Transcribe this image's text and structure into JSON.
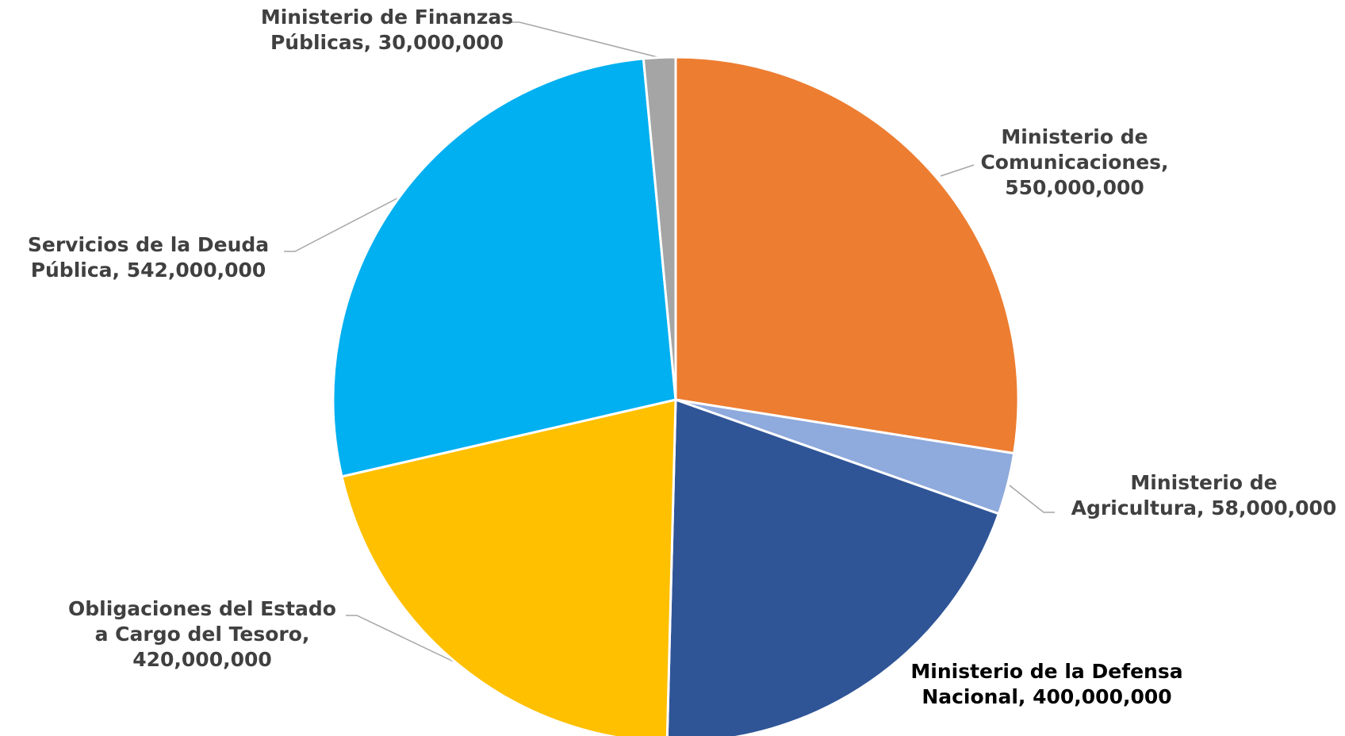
{
  "chart_data": {
    "type": "pie",
    "title": "",
    "start_angle_deg": 0,
    "direction": "clockwise",
    "slices": [
      {
        "label": "Ministerio de Comunicaciones",
        "value": 550000000,
        "value_text": "550,000,000",
        "color": "#ED7D31",
        "label_lines": [
          "Ministerio de",
          "Comunicaciones,",
          "550,000,000"
        ]
      },
      {
        "label": "Ministerio de Agricultura",
        "value": 58000000,
        "value_text": "58,000,000",
        "color": "#8FAADC",
        "label_lines": [
          "Ministerio de",
          "Agricultura, 58,000,000"
        ]
      },
      {
        "label": "Ministerio de la Defensa Nacional",
        "value": 400000000,
        "value_text": "400,000,000",
        "color": "#2F5597",
        "label_lines": [
          "Ministerio de la Defensa",
          "Nacional, 400,000,000"
        ]
      },
      {
        "label": "Obligaciones del Estado a Cargo del Tesoro",
        "value": 420000000,
        "value_text": "420,000,000",
        "color": "#FFC000",
        "label_lines": [
          "Obligaciones del Estado",
          "a Cargo del Tesoro,",
          "420,000,000"
        ]
      },
      {
        "label": "Servicios de la Deuda Pública",
        "value": 542000000,
        "value_text": "542,000,000",
        "color": "#00B0F0",
        "label_lines": [
          "Servicios de la Deuda",
          "Pública, 542,000,000"
        ]
      },
      {
        "label": "Ministerio de Finanzas Públicas",
        "value": 30000000,
        "value_text": "30,000,000",
        "color": "#A5A5A5",
        "label_lines": [
          "Ministerio de Finanzas",
          "Públicas, 30,000,000"
        ]
      }
    ]
  }
}
